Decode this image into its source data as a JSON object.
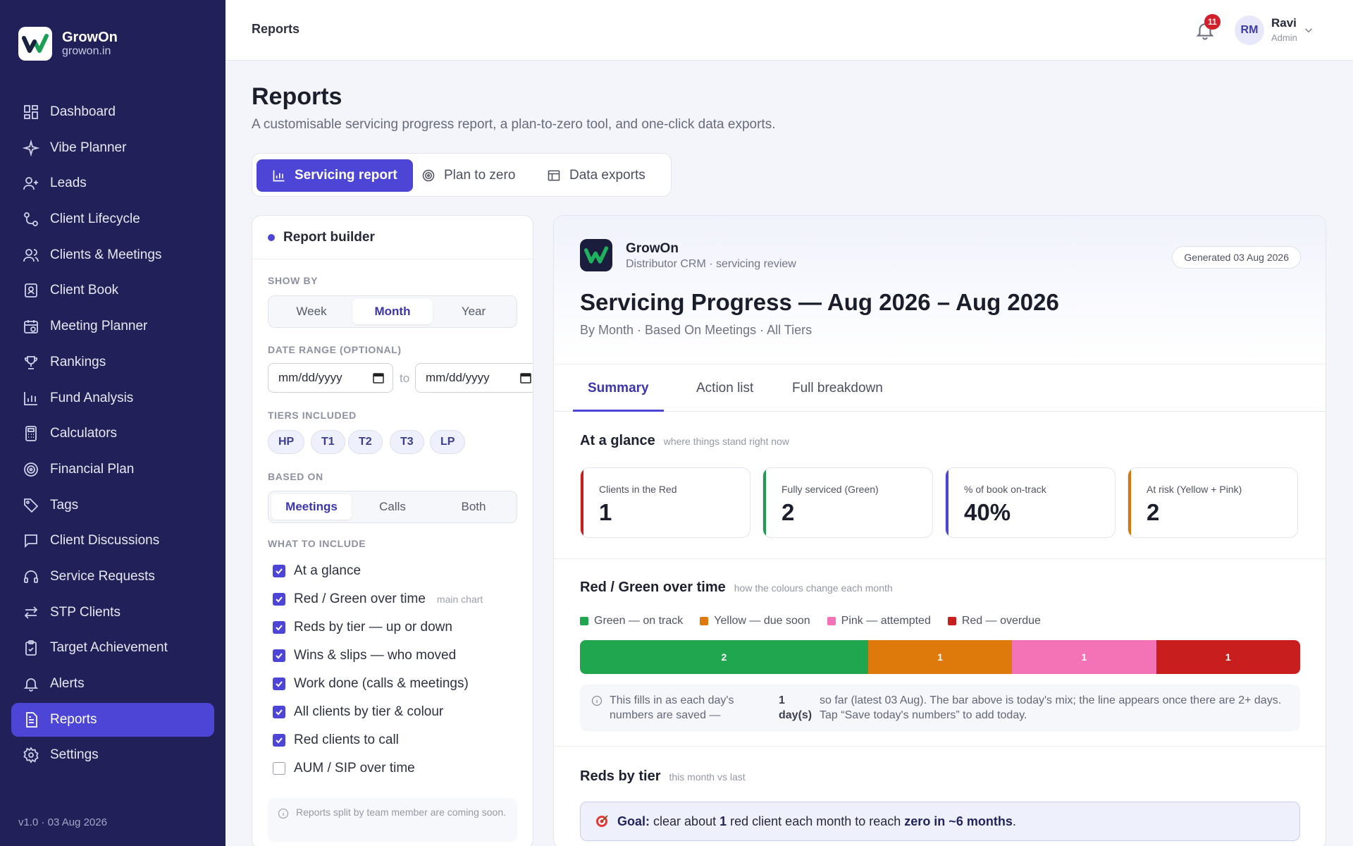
{
  "brand": {
    "name": "GrowOn",
    "domain": "growon.in"
  },
  "sidebar": {
    "items": [
      {
        "label": "Dashboard",
        "icon": "dashboard-icon"
      },
      {
        "label": "Vibe Planner",
        "icon": "sparkle-icon"
      },
      {
        "label": "Leads",
        "icon": "user-plus-icon"
      },
      {
        "label": "Client Lifecycle",
        "icon": "lifecycle-icon"
      },
      {
        "label": "Clients & Meetings",
        "icon": "users-icon"
      },
      {
        "label": "Client Book",
        "icon": "book-icon"
      },
      {
        "label": "Meeting Planner",
        "icon": "calendar-clock-icon"
      },
      {
        "label": "Rankings",
        "icon": "trophy-icon"
      },
      {
        "label": "Fund Analysis",
        "icon": "bar-chart-icon"
      },
      {
        "label": "Calculators",
        "icon": "calculator-icon"
      },
      {
        "label": "Financial Plan",
        "icon": "target-icon"
      },
      {
        "label": "Tags",
        "icon": "tag-icon"
      },
      {
        "label": "Client Discussions",
        "icon": "message-icon"
      },
      {
        "label": "Service Requests",
        "icon": "headset-icon"
      },
      {
        "label": "STP Clients",
        "icon": "swap-icon"
      },
      {
        "label": "Target Achievement",
        "icon": "clipboard-check-icon"
      },
      {
        "label": "Alerts",
        "icon": "bell-icon"
      },
      {
        "label": "Reports",
        "icon": "report-icon",
        "active": true
      },
      {
        "label": "Settings",
        "icon": "gear-icon"
      }
    ],
    "version": "v1.0 · 03 Aug 2026"
  },
  "topbar": {
    "breadcrumb": "Reports",
    "notifications": "11",
    "user": {
      "initials": "RM",
      "name": "Ravi",
      "role": "Admin"
    }
  },
  "page": {
    "title": "Reports",
    "subtitle": "A customisable servicing progress report, a plan-to-zero tool, and one-click data exports.",
    "tabs": [
      {
        "label": "Servicing report",
        "active": true
      },
      {
        "label": "Plan to zero"
      },
      {
        "label": "Data exports"
      }
    ]
  },
  "builder": {
    "title": "Report builder",
    "show_by": {
      "label": "SHOW BY",
      "options": [
        "Week",
        "Month",
        "Year"
      ],
      "selected": "Month"
    },
    "date_range": {
      "label": "DATE RANGE (OPTIONAL)",
      "from": "mm/dd/yyyy",
      "to_label": "to",
      "to": "mm/dd/yyyy"
    },
    "tiers": {
      "label": "TIERS INCLUDED",
      "items": [
        "HP",
        "T1",
        "T2",
        "T3",
        "LP"
      ]
    },
    "based_on": {
      "label": "BASED ON",
      "options": [
        "Meetings",
        "Calls",
        "Both"
      ],
      "selected": "Meetings"
    },
    "include": {
      "label": "WHAT TO INCLUDE",
      "items": [
        {
          "label": "At a glance",
          "checked": true
        },
        {
          "label": "Red / Green over time",
          "checked": true,
          "tag": "main chart"
        },
        {
          "label": "Reds by tier — up or down",
          "checked": true
        },
        {
          "label": "Wins & slips — who moved",
          "checked": true
        },
        {
          "label": "Work done (calls & meetings)",
          "checked": true
        },
        {
          "label": "All clients by tier & colour",
          "checked": true
        },
        {
          "label": "Red clients to call",
          "checked": true
        },
        {
          "label": "AUM / SIP over time",
          "checked": false
        }
      ]
    },
    "note": "Reports split by team member are coming soon."
  },
  "report": {
    "brand": "GrowOn",
    "brand_sub": "Distributor CRM · servicing review",
    "generated": "Generated 03 Aug 2026",
    "title": "Servicing Progress — Aug 2026 – Aug 2026",
    "subtitle": "By Month · Based On Meetings · All Tiers",
    "tabs": [
      {
        "label": "Summary",
        "active": true
      },
      {
        "label": "Action list"
      },
      {
        "label": "Full breakdown"
      }
    ],
    "glance": {
      "title": "At a glance",
      "hint": "where things stand right now",
      "kpis": [
        {
          "label": "Clients in the Red",
          "value": "1",
          "color": "#c81e1e"
        },
        {
          "label": "Fully serviced (Green)",
          "value": "2",
          "color": "#1f9d4d"
        },
        {
          "label": "% of book on-track",
          "value": "40%",
          "color": "#4d45d6"
        },
        {
          "label": "At risk (Yellow + Pink)",
          "value": "2",
          "color": "#d97706"
        }
      ]
    },
    "over_time": {
      "title": "Red / Green over time",
      "hint": "how the colours change each month",
      "legend": [
        {
          "label": "Green — on track",
          "color": "#1fa64f"
        },
        {
          "label": "Yellow — due soon",
          "color": "#dd7a0b"
        },
        {
          "label": "Pink — attempted",
          "color": "#f472b6"
        },
        {
          "label": "Red — overdue",
          "color": "#c81e1e"
        }
      ],
      "bar": [
        {
          "name": "Green",
          "value": 2,
          "color": "#1fa64f"
        },
        {
          "name": "Yellow",
          "value": 1,
          "color": "#dd7a0b"
        },
        {
          "name": "Pink",
          "value": 1,
          "color": "#f472b6"
        },
        {
          "name": "Red",
          "value": 1,
          "color": "#c81e1e"
        }
      ],
      "info_1": "This fills in as each day's numbers are saved —",
      "info_2": "1 day(s)",
      "info_3": "so far (latest 03 Aug). The bar above is today's mix; the line appears once there are 2+ days. Tap “Save today's numbers” to add today."
    },
    "by_tier": {
      "title": "Reds by tier",
      "hint": "this month vs last",
      "goal_label": "Goal:",
      "goal_mid": "clear about",
      "goal_count": "1",
      "goal_mid2": "red client each month to reach",
      "goal_end": "zero in ~6 months",
      "goal_period": "."
    }
  }
}
